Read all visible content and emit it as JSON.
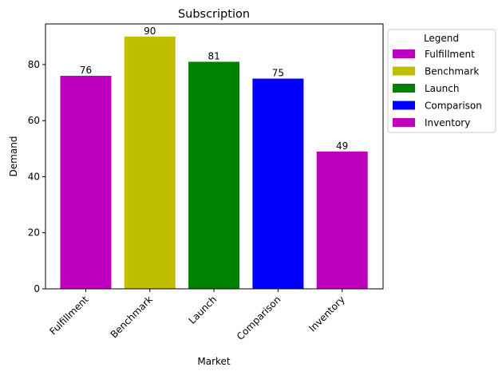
{
  "chart_data": {
    "type": "bar",
    "title": "Subscription",
    "xlabel": "Market",
    "ylabel": "Demand",
    "categories": [
      "Fulfillment",
      "Benchmark",
      "Launch",
      "Comparison",
      "Inventory"
    ],
    "values": [
      76,
      90,
      81,
      75,
      49
    ],
    "colors": [
      "#bf00bf",
      "#bfbf00",
      "#008000",
      "#0000ff",
      "#bf00bf"
    ],
    "ylim": [
      0,
      94.5
    ],
    "yticks": [
      0,
      20,
      40,
      60,
      80
    ],
    "grid": false,
    "legend": {
      "title": "Legend",
      "placement": "outside-top-right",
      "entries": [
        "Fulfillment",
        "Benchmark",
        "Launch",
        "Comparison",
        "Inventory"
      ]
    }
  }
}
